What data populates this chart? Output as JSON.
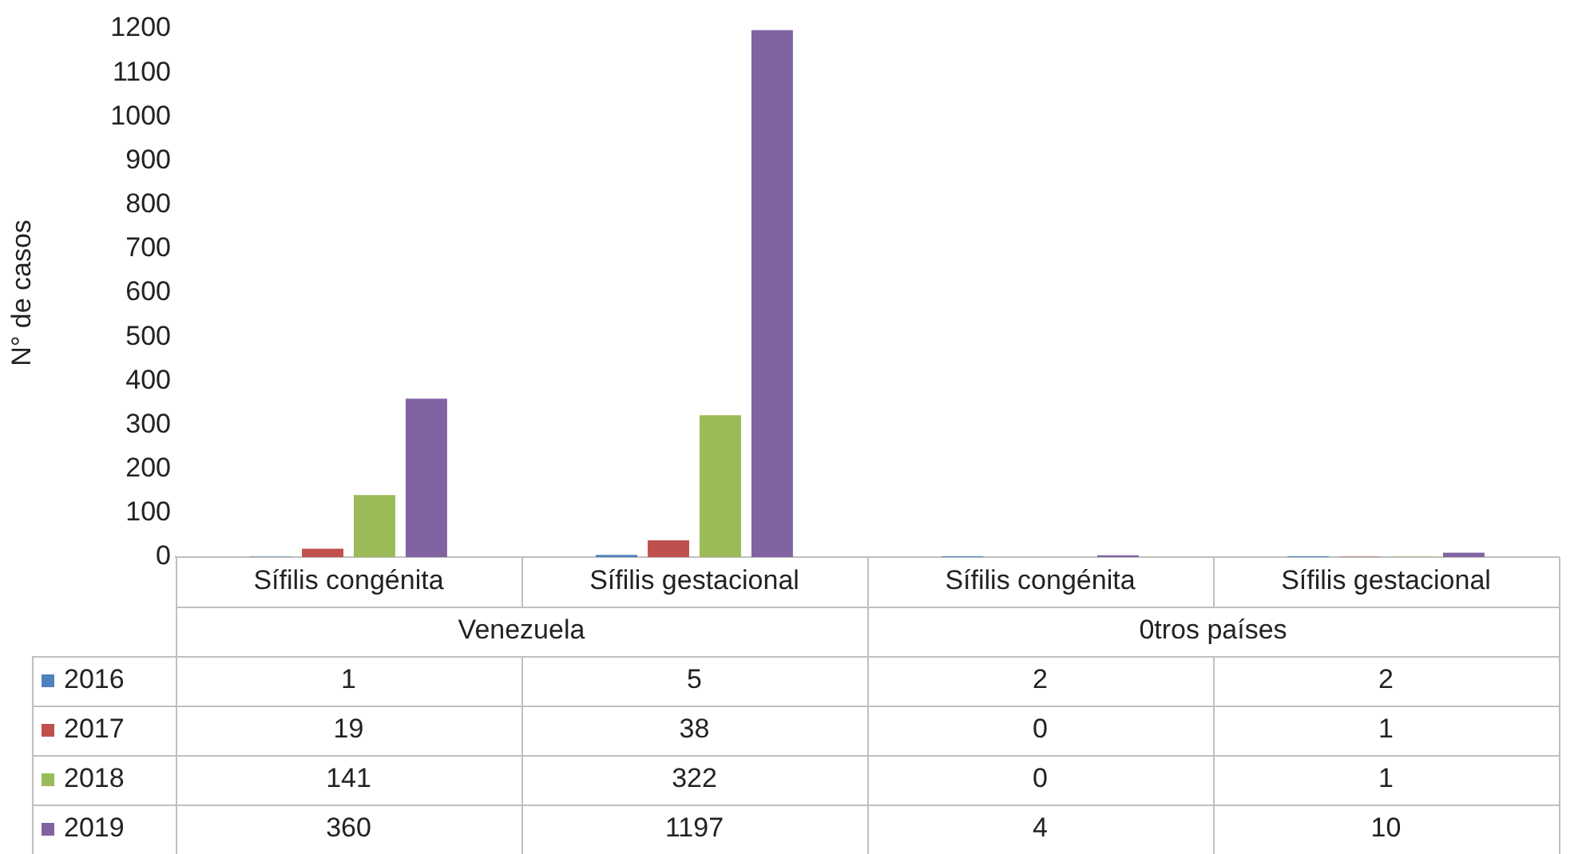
{
  "chart_data": {
    "type": "bar",
    "ylabel": "N° de casos",
    "categories": [
      "Sífilis congénita",
      "Sífilis gestacional",
      "Sífilis congénita",
      "Sífilis gestacional"
    ],
    "annotations": [
      "Venezuela",
      "0tros países"
    ],
    "series": [
      {
        "name": "2016",
        "color": "#4f81bd",
        "values": [
          1,
          5,
          2,
          2
        ]
      },
      {
        "name": "2017",
        "color": "#c0504d",
        "values": [
          19,
          38,
          0,
          1
        ]
      },
      {
        "name": "2018",
        "color": "#9bbb59",
        "values": [
          141,
          322,
          0,
          1
        ]
      },
      {
        "name": "2019",
        "color": "#8064a2",
        "values": [
          360,
          1197,
          4,
          10
        ]
      }
    ],
    "ylim": [
      0,
      1200
    ],
    "yticks": [
      0,
      100,
      200,
      300,
      400,
      500,
      600,
      700,
      800,
      900,
      1000,
      1100,
      1200
    ],
    "grid": false,
    "legend": "bottom",
    "data_labels": true
  }
}
